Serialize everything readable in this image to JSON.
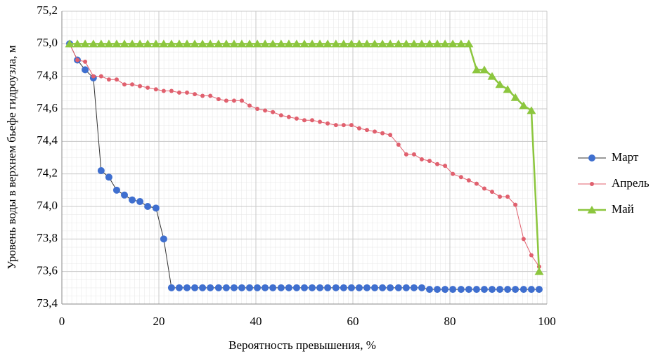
{
  "chart_data": {
    "type": "line",
    "x_label": "Вероятность превышения, %",
    "y_label": "Уровень воды в верхнем бьефе гидроузла, м",
    "x": [
      1.6,
      3.2,
      4.8,
      6.5,
      8.1,
      9.7,
      11.3,
      12.9,
      14.5,
      16.1,
      17.7,
      19.4,
      21.0,
      22.6,
      24.2,
      25.8,
      27.4,
      29.0,
      30.6,
      32.3,
      33.9,
      35.5,
      37.1,
      38.7,
      40.3,
      41.9,
      43.5,
      45.2,
      46.8,
      48.4,
      50.0,
      51.6,
      53.2,
      54.8,
      56.5,
      58.1,
      59.7,
      61.3,
      62.9,
      64.5,
      66.1,
      67.7,
      69.4,
      71.0,
      72.6,
      74.2,
      75.8,
      77.4,
      79.0,
      80.6,
      82.3,
      83.9,
      85.5,
      87.1,
      88.7,
      90.3,
      91.9,
      93.5,
      95.2,
      96.8,
      98.4
    ],
    "series": [
      {
        "name": "Март",
        "color": "#3f6fcf",
        "marker": "circle",
        "values": [
          75.0,
          74.9,
          74.84,
          74.79,
          74.22,
          74.18,
          74.1,
          74.07,
          74.04,
          74.03,
          74.0,
          73.99,
          73.8,
          73.5,
          73.5,
          73.5,
          73.5,
          73.5,
          73.5,
          73.5,
          73.5,
          73.5,
          73.5,
          73.5,
          73.5,
          73.5,
          73.5,
          73.5,
          73.5,
          73.5,
          73.5,
          73.5,
          73.5,
          73.5,
          73.5,
          73.5,
          73.5,
          73.5,
          73.5,
          73.5,
          73.5,
          73.5,
          73.5,
          73.5,
          73.5,
          73.5,
          73.49,
          73.49,
          73.49,
          73.49,
          73.49,
          73.49,
          73.49,
          73.49,
          73.49,
          73.49,
          73.49,
          73.49,
          73.49,
          73.49,
          73.49
        ]
      },
      {
        "name": "Апрель",
        "color": "#e0606e",
        "marker": "dot",
        "values": [
          75.0,
          74.9,
          74.89,
          74.8,
          74.8,
          74.78,
          74.78,
          74.75,
          74.75,
          74.74,
          74.73,
          74.72,
          74.71,
          74.71,
          74.7,
          74.7,
          74.69,
          74.68,
          74.68,
          74.66,
          74.65,
          74.65,
          74.65,
          74.62,
          74.6,
          74.59,
          74.58,
          74.56,
          74.55,
          74.54,
          74.53,
          74.53,
          74.52,
          74.51,
          74.5,
          74.5,
          74.5,
          74.48,
          74.47,
          74.46,
          74.45,
          74.44,
          74.38,
          74.32,
          74.32,
          74.29,
          74.28,
          74.26,
          74.25,
          74.2,
          74.18,
          74.16,
          74.14,
          74.11,
          74.09,
          74.06,
          74.06,
          74.01,
          73.8,
          73.7,
          73.63
        ]
      },
      {
        "name": "Май",
        "color": "#8cc63e",
        "marker": "triangle",
        "values": [
          75.0,
          75.0,
          75.0,
          75.0,
          75.0,
          75.0,
          75.0,
          75.0,
          75.0,
          75.0,
          75.0,
          75.0,
          75.0,
          75.0,
          75.0,
          75.0,
          75.0,
          75.0,
          75.0,
          75.0,
          75.0,
          75.0,
          75.0,
          75.0,
          75.0,
          75.0,
          75.0,
          75.0,
          75.0,
          75.0,
          75.0,
          75.0,
          75.0,
          75.0,
          75.0,
          75.0,
          75.0,
          75.0,
          75.0,
          75.0,
          75.0,
          75.0,
          75.0,
          75.0,
          75.0,
          75.0,
          75.0,
          75.0,
          75.0,
          75.0,
          75.0,
          75.0,
          74.84,
          74.84,
          74.8,
          74.75,
          74.72,
          74.67,
          74.62,
          74.59,
          73.6
        ]
      }
    ],
    "xlim": [
      0,
      100
    ],
    "xticks": [
      0,
      20,
      40,
      60,
      80,
      100
    ],
    "ylim": [
      73.4,
      75.2
    ],
    "yticks": [
      {
        "value": 73.4,
        "label": "73,4"
      },
      {
        "value": 73.6,
        "label": "73,6"
      },
      {
        "value": 73.8,
        "label": "73,8"
      },
      {
        "value": 74.0,
        "label": "74,0"
      },
      {
        "value": 74.2,
        "label": "74,2"
      },
      {
        "value": 74.4,
        "label": "74,4"
      },
      {
        "value": 74.6,
        "label": "74,6"
      },
      {
        "value": 74.8,
        "label": "74,8"
      },
      {
        "value": 75.0,
        "label": "75,0"
      },
      {
        "value": 75.2,
        "label": "75,2"
      }
    ],
    "grid": true,
    "legend": "right"
  }
}
